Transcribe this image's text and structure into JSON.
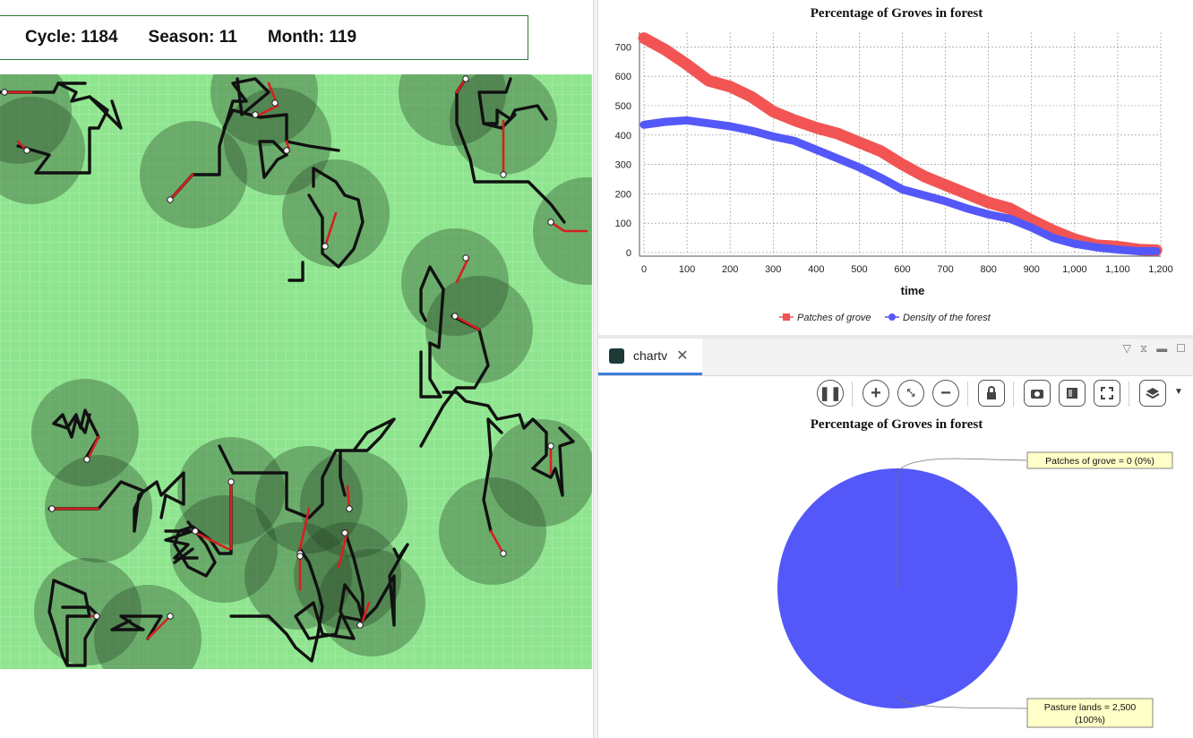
{
  "status": {
    "cycle": "Cycle: 1184",
    "season": "Season: 11",
    "month": "Month: 119"
  },
  "colors": {
    "grass": "#8fe58f",
    "grove": "#2f4f2f",
    "trail": "#111111",
    "fresh_trail": "#d62020",
    "series_grove": "#f25454",
    "series_density": "#5558f8"
  },
  "tabs": [
    {
      "label": "chartv",
      "close_icon": "close-icon"
    }
  ],
  "toolbar": {
    "buttons": [
      "pause-icon",
      "zoom-in-icon",
      "zoom-fit-icon",
      "zoom-out-icon",
      "lock-icon",
      "snapshot-icon",
      "background-icon",
      "fullscreen-icon",
      "layers-icon"
    ]
  },
  "chart_data": [
    {
      "type": "line",
      "title": "Percentage of Groves in forest",
      "xlabel": "time",
      "ylabel": "",
      "xlim": [
        0,
        1200
      ],
      "ylim": [
        0,
        750
      ],
      "grid": true,
      "legend_position": "bottom",
      "x_ticks": [
        "0",
        "100",
        "200",
        "300",
        "400",
        "500",
        "600",
        "700",
        "800",
        "900",
        "1,000",
        "1,100",
        "1,200"
      ],
      "y_ticks": [
        "0",
        "100",
        "200",
        "300",
        "400",
        "500",
        "600",
        "700"
      ],
      "series": [
        {
          "name": "Patches of grove",
          "color": "#f25454",
          "x": [
            0,
            50,
            100,
            150,
            200,
            250,
            300,
            350,
            400,
            450,
            500,
            550,
            600,
            650,
            700,
            750,
            800,
            850,
            900,
            950,
            1000,
            1050,
            1100,
            1150,
            1190
          ],
          "y": [
            730,
            690,
            640,
            585,
            565,
            530,
            480,
            450,
            425,
            405,
            375,
            345,
            300,
            260,
            230,
            200,
            170,
            150,
            110,
            75,
            45,
            25,
            20,
            10,
            8
          ]
        },
        {
          "name": "Density of the forest",
          "color": "#5558f8",
          "x": [
            0,
            50,
            100,
            150,
            200,
            250,
            300,
            350,
            400,
            450,
            500,
            550,
            600,
            650,
            700,
            750,
            800,
            850,
            900,
            950,
            1000,
            1050,
            1100,
            1150,
            1190
          ],
          "y": [
            435,
            445,
            450,
            440,
            430,
            415,
            395,
            380,
            350,
            320,
            290,
            255,
            215,
            195,
            175,
            150,
            130,
            115,
            85,
            50,
            30,
            18,
            10,
            5,
            5
          ]
        }
      ]
    },
    {
      "type": "pie",
      "title": "Percentage of Groves in forest",
      "slices": [
        {
          "label": "Patches of grove",
          "value": 0,
          "percent": "0%",
          "color": "#f25454",
          "callout": "Patches of grove = 0 (0%)"
        },
        {
          "label": "Pasture lands",
          "value": 2500,
          "percent": "100%",
          "color": "#5558f8",
          "callout_line1": "Pasture lands = 2,500",
          "callout_line2": "(100%)"
        }
      ]
    }
  ]
}
